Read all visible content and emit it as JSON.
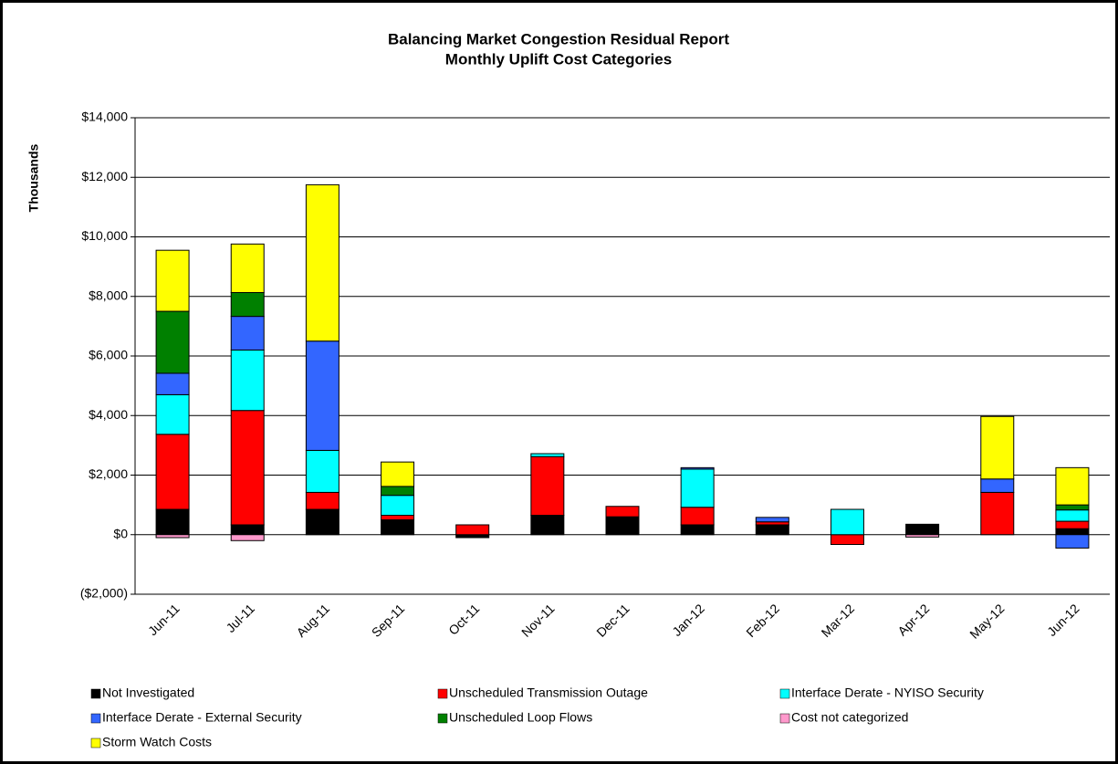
{
  "chart_data": {
    "type": "stacked_bar",
    "title": "Balancing Market Congestion Residual Report",
    "subtitle": "Monthly Uplift Cost Categories",
    "y_label": "Thousands",
    "categories": [
      "Jun-11",
      "Jul-11",
      "Aug-11",
      "Sep-11",
      "Oct-11",
      "Nov-11",
      "Dec-11",
      "Jan-12",
      "Feb-12",
      "Mar-12",
      "Apr-12",
      "May-12",
      "Jun-12"
    ],
    "series": [
      {
        "name": "Not Investigated",
        "color": "#000000",
        "values": [
          850,
          330,
          850,
          500,
          -100,
          650,
          600,
          330,
          330,
          0,
          350,
          0,
          200
        ]
      },
      {
        "name": "Unscheduled Transmission Outage",
        "color": "#ff0000",
        "values": [
          2520,
          3840,
          570,
          150,
          330,
          1970,
          350,
          590,
          100,
          -330,
          0,
          1420,
          250
        ]
      },
      {
        "name": "Interface Derate - NYISO  Security",
        "color": "#00ffff",
        "values": [
          1330,
          2030,
          1410,
          670,
          0,
          100,
          0,
          1280,
          0,
          850,
          0,
          0,
          380
        ]
      },
      {
        "name": "Interface Derate - External Security",
        "color": "#3366ff",
        "values": [
          720,
          1130,
          3670,
          0,
          0,
          0,
          0,
          50,
          150,
          0,
          0,
          450,
          -450
        ]
      },
      {
        "name": "Unscheduled Loop Flows",
        "color": "#008000",
        "values": [
          2080,
          800,
          0,
          300,
          0,
          0,
          0,
          0,
          0,
          0,
          0,
          0,
          170
        ]
      },
      {
        "name": "Cost not categorized",
        "color": "#ff99cc",
        "values": [
          -100,
          -200,
          0,
          0,
          0,
          0,
          0,
          0,
          0,
          0,
          -80,
          0,
          0
        ]
      },
      {
        "name": "Storm Watch Costs",
        "color": "#ffff00",
        "values": [
          2050,
          1630,
          5250,
          820,
          0,
          0,
          0,
          0,
          0,
          0,
          0,
          2100,
          1250
        ]
      }
    ],
    "ylim": [
      -2000,
      14000
    ],
    "yticks": [
      {
        "value": -2000,
        "label": "($2,000)"
      },
      {
        "value": 0,
        "label": "$0"
      },
      {
        "value": 2000,
        "label": "$2,000"
      },
      {
        "value": 4000,
        "label": "$4,000"
      },
      {
        "value": 6000,
        "label": "$6,000"
      },
      {
        "value": 8000,
        "label": "$8,000"
      },
      {
        "value": 10000,
        "label": "$10,000"
      },
      {
        "value": 12000,
        "label": "$12,000"
      },
      {
        "value": 14000,
        "label": "$14,000"
      }
    ],
    "grid": true
  }
}
